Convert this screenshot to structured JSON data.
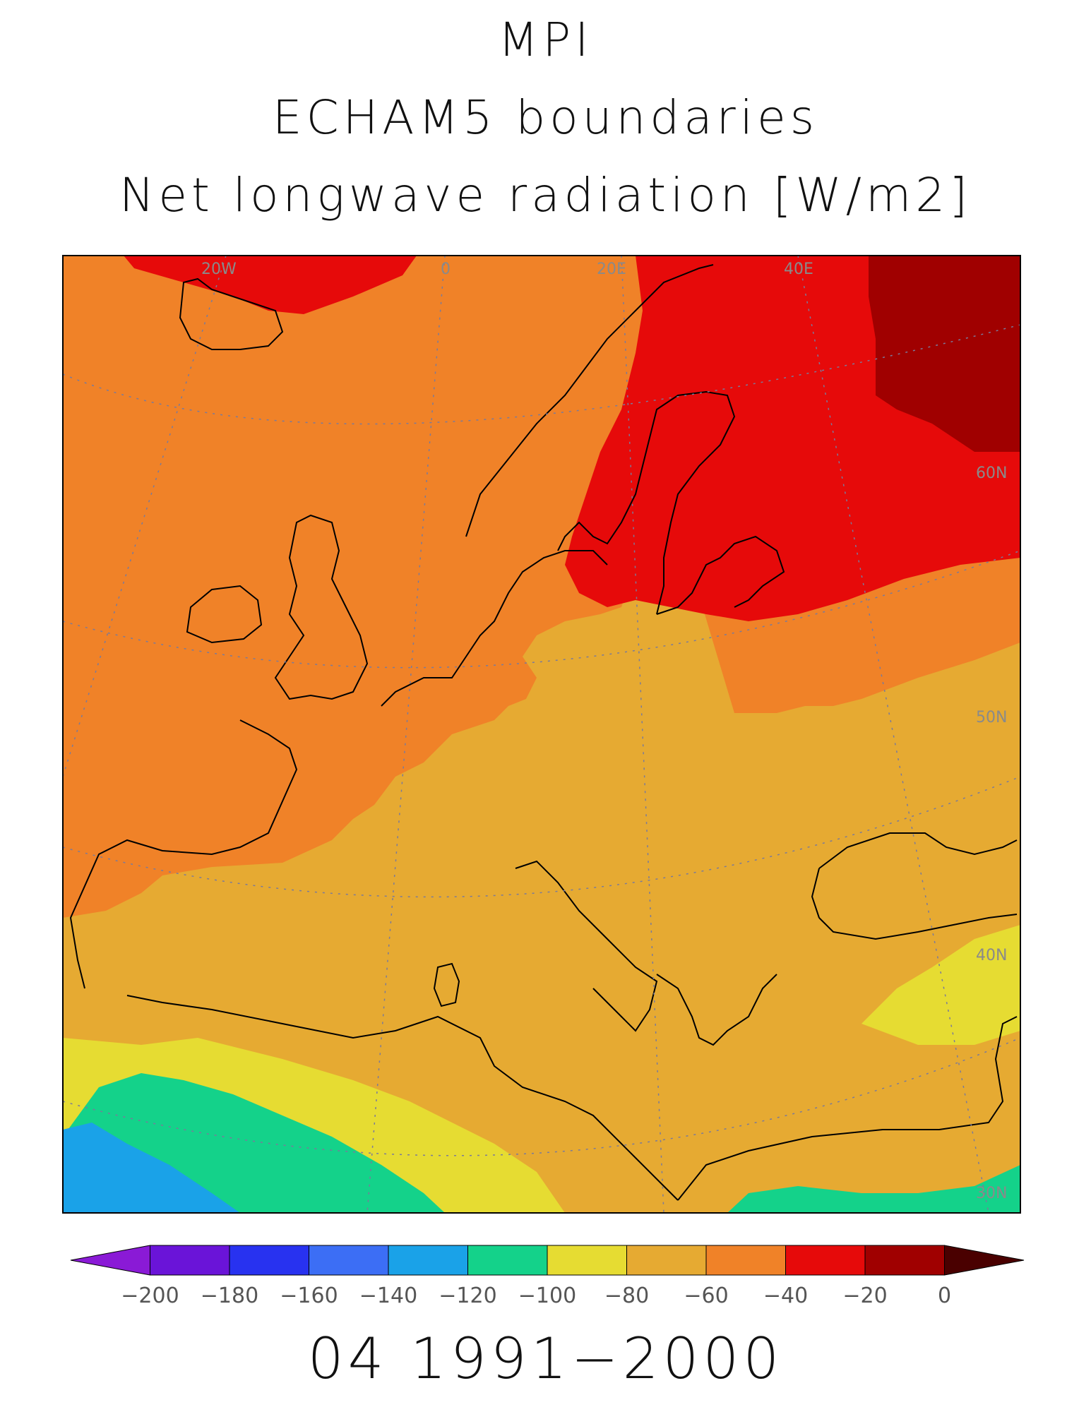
{
  "title_lines": [
    "MPI",
    "ECHAM5 boundaries",
    "Net longwave radiation [W/m2]"
  ],
  "footer": "04 1991−2000",
  "graticule_labels": {
    "lon": [
      "20W",
      "0",
      "20E",
      "40E"
    ],
    "lat": [
      "60N",
      "50N",
      "40N",
      "30N"
    ]
  },
  "colorbar": {
    "colors": [
      "#8a1ad6",
      "#6a14d8",
      "#2832f0",
      "#3c6ef5",
      "#1aa2e8",
      "#14d28a",
      "#e6dc32",
      "#e6aa32",
      "#f08228",
      "#e60a0a",
      "#a00000",
      "#4a0000"
    ],
    "labels": [
      "−200",
      "−180",
      "−160",
      "−140",
      "−120",
      "−100",
      "−80",
      "−60",
      "−40",
      "−20",
      "0"
    ]
  }
}
